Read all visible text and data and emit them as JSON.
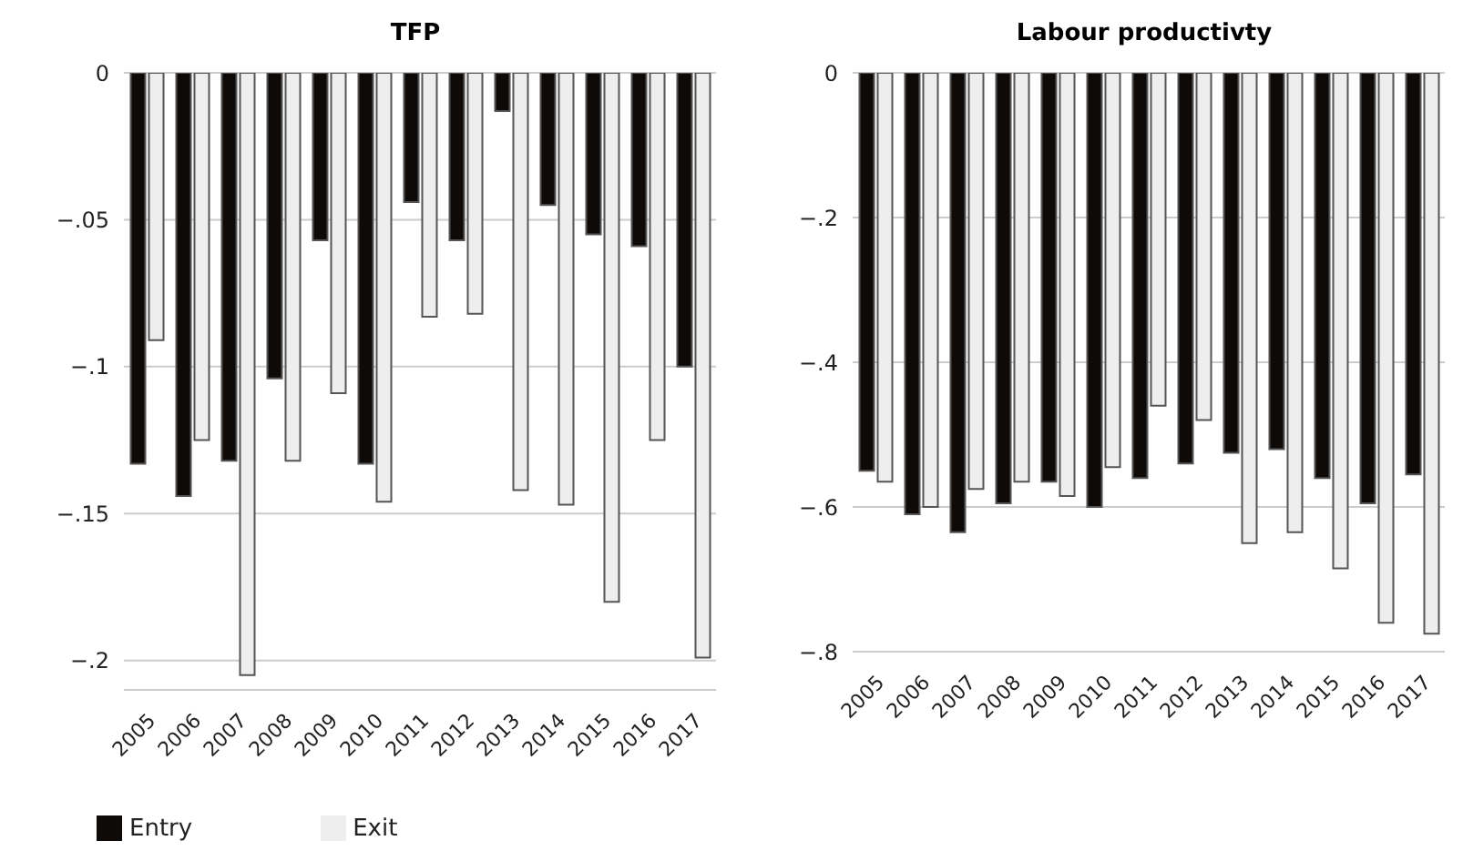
{
  "chart_data": [
    {
      "type": "bar",
      "title": "TFP",
      "categories": [
        "2005",
        "2006",
        "2007",
        "2008",
        "2009",
        "2010",
        "2011",
        "2012",
        "2013",
        "2014",
        "2015",
        "2016",
        "2017"
      ],
      "series": [
        {
          "name": "Entry",
          "color": "#0d0a07",
          "values": [
            -0.133,
            -0.144,
            -0.132,
            -0.104,
            -0.057,
            -0.133,
            -0.044,
            -0.057,
            -0.013,
            -0.045,
            -0.055,
            -0.059,
            -0.1
          ]
        },
        {
          "name": "Exit",
          "color": "#eeeeee",
          "values": [
            -0.091,
            -0.125,
            -0.205,
            -0.132,
            -0.109,
            -0.146,
            -0.083,
            -0.082,
            -0.142,
            -0.147,
            -0.18,
            -0.125,
            -0.199
          ]
        }
      ],
      "ylim": [
        -0.21,
        0
      ],
      "yticks": [
        {
          "value": -0.2,
          "label": "−.2"
        },
        {
          "value": -0.15,
          "label": "−.15"
        },
        {
          "value": -0.1,
          "label": "−.1"
        },
        {
          "value": -0.05,
          "label": "−.05"
        },
        0
      ],
      "grid": "y",
      "legend": "bottom left"
    },
    {
      "type": "bar",
      "title": "Labour productivty",
      "categories": [
        "2005",
        "2006",
        "2007",
        "2008",
        "2009",
        "2010",
        "2011",
        "2012",
        "2013",
        "2014",
        "2015",
        "2016",
        "2017"
      ],
      "series": [
        {
          "color": "#0d0a07",
          "values": [
            -0.55,
            -0.61,
            -0.635,
            -0.595,
            -0.565,
            -0.6,
            -0.56,
            -0.54,
            -0.525,
            -0.52,
            -0.56,
            -0.595,
            -0.555
          ]
        },
        {
          "color": "#eeeeee",
          "values": [
            -0.565,
            -0.6,
            -0.575,
            -0.565,
            -0.585,
            -0.545,
            -0.46,
            -0.48,
            -0.65,
            -0.635,
            -0.685,
            -0.76,
            -0.775
          ]
        }
      ],
      "ylim": [
        -0.8,
        0
      ],
      "yticks": [
        {
          "value": -0.8,
          "label": "−.8"
        },
        {
          "value": -0.6,
          "label": "−.6"
        },
        {
          "value": -0.4,
          "label": "−.4"
        },
        {
          "value": -0.2,
          "label": "−.2"
        },
        0
      ],
      "grid": "y"
    }
  ]
}
